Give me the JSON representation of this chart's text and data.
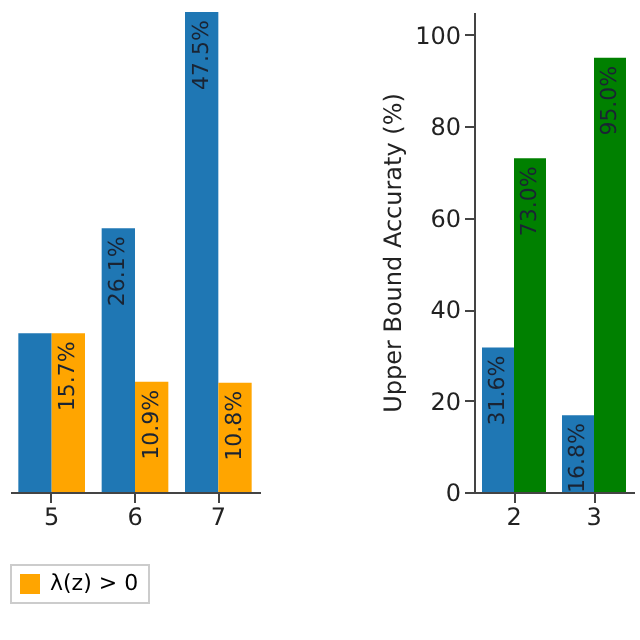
{
  "chart_data": [
    {
      "type": "bar",
      "categories": [
        "5",
        "6",
        "7"
      ],
      "tick_labels": "x",
      "grid": false,
      "legend": "bottom",
      "series": [
        {
          "color": "#1f77b4",
          "values": [
            15.7,
            26.1,
            47.5
          ],
          "value_labels": [
            null,
            "26.1%",
            "47.5%"
          ]
        },
        {
          "name": "λ(z) > 0",
          "color": "#ffa500",
          "values": [
            15.7,
            10.9,
            10.8
          ],
          "value_labels": [
            "15.7%",
            "10.9%",
            "10.8%"
          ]
        }
      ]
    },
    {
      "type": "bar",
      "categories": [
        "2",
        "3"
      ],
      "ylabel": "Upper Bound Accuraty (%)",
      "ylim": [
        0,
        105
      ],
      "yticks": [
        0,
        20,
        40,
        60,
        80,
        100
      ],
      "grid": false,
      "series": [
        {
          "color": "#1f77b4",
          "values": [
            31.6,
            16.8
          ],
          "value_labels": [
            "31.6%",
            "16.8%"
          ]
        },
        {
          "color": "#008000",
          "values": [
            73.0,
            95.0
          ],
          "value_labels": [
            "73.0%",
            "95.0%"
          ]
        }
      ]
    }
  ]
}
